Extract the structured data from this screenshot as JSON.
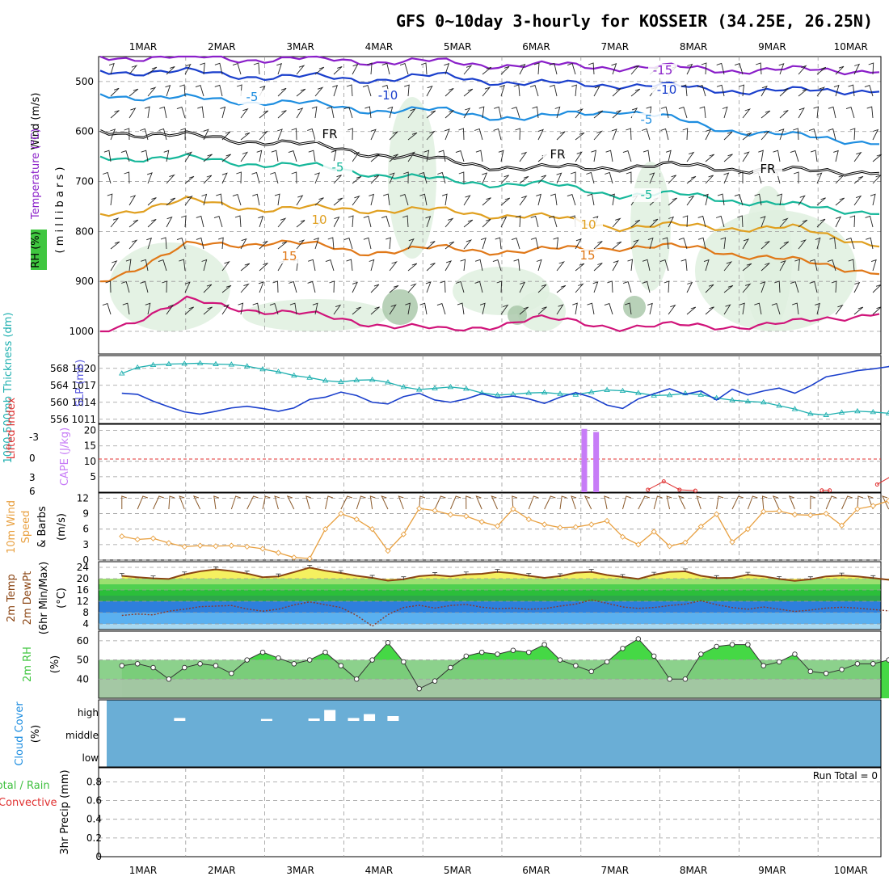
{
  "title": "GFS 0~10day 3-hourly for KOSSEIR (34.25E, 26.25N)",
  "colors": {
    "purple": "#8a1fc9",
    "blue": "#1a3fcc",
    "lightblue": "#1e8ee0",
    "teal": "#16b79a",
    "gold": "#e0a020",
    "orange": "#e07818",
    "magenta": "#d0147a",
    "black": "#000000",
    "rh_green": "#3fc63f",
    "cape_purple": "#c77cf7",
    "li_red": "#e03030",
    "cyan": "#20b0b0",
    "wind_orange": "#e8a040",
    "temp_brown": "#8b4513",
    "temp_yellow": "#f5f060",
    "cloud_bg": "#6aaed6"
  },
  "chart_data": [
    {
      "id": "upper",
      "type": "contour",
      "ylabel_parts": [
        "Wind (m/s)",
        "Temperature (°C)",
        "RH (%)",
        "( m i l l i b a r s )"
      ],
      "yticks": [
        "500",
        "600",
        "700",
        "800",
        "900",
        "1000"
      ],
      "ylim": [
        450,
        1000
      ],
      "x_dates": [
        "1MAR",
        "2MAR",
        "3MAR",
        "4MAR",
        "5MAR",
        "6MAR",
        "7MAR",
        "8MAR",
        "9MAR",
        "10MAR"
      ],
      "contour_labels": [
        "-15",
        "-10",
        "-10",
        "-5",
        "-5",
        "FR",
        "FR",
        "FR",
        "-5",
        "-5",
        "10",
        "10",
        "15",
        "15",
        "10"
      ],
      "isotherms": [
        {
          "label": "-15",
          "color": "purple",
          "p": [
            450,
            452,
            455,
            458,
            462,
            468,
            470,
            475,
            478,
            476
          ]
        },
        {
          "label": "-10",
          "color": "blue",
          "p": [
            478,
            482,
            490,
            495,
            490,
            505,
            505,
            515,
            520,
            515
          ]
        },
        {
          "label": "-5",
          "color": "lightblue",
          "p": [
            525,
            535,
            540,
            555,
            560,
            575,
            555,
            590,
            610,
            620
          ]
        },
        {
          "label": "FR",
          "color": "black",
          "p": [
            598,
            610,
            620,
            640,
            660,
            675,
            670,
            670,
            680,
            678
          ]
        },
        {
          "label": "-5",
          "color": "teal",
          "p": [
            650,
            655,
            665,
            680,
            700,
            705,
            725,
            730,
            750,
            760
          ]
        },
        {
          "label": "10",
          "color": "gold",
          "p": [
            765,
            740,
            755,
            755,
            760,
            770,
            790,
            790,
            795,
            825
          ]
        },
        {
          "label": "15",
          "color": "orange",
          "p": [
            900,
            830,
            820,
            840,
            835,
            840,
            830,
            835,
            860,
            880
          ]
        },
        {
          "label": "",
          "color": "magenta",
          "p": [
            1000,
            940,
            960,
            980,
            1000,
            975,
            990,
            990,
            985,
            960
          ]
        }
      ]
    },
    {
      "id": "thickness",
      "type": "line",
      "ylabel_left": "1000-500mb Thickness (dm)",
      "ylabel_right": "SLP (mb)",
      "yticks_left": [
        "556",
        "560",
        "564",
        "568"
      ],
      "yticks_right": [
        "1011",
        "1014",
        "1017",
        "1020"
      ],
      "ylim_left": [
        555,
        571
      ],
      "series": [
        {
          "color": "cyan",
          "marker": "triangle",
          "values": [
            566.8,
            568.2,
            568.8,
            569.0,
            569.1,
            569.2,
            569.0,
            568.9,
            568.5,
            567.8,
            567.2,
            566.3,
            565.8,
            565.1,
            564.8,
            565.2,
            565.3,
            564.7,
            563.6,
            563.0,
            563.3,
            563.6,
            563.2,
            562.2,
            561.7,
            561.9,
            562.2,
            562.3,
            562.0,
            561.8,
            562.4,
            562.9,
            562.7,
            562.2,
            561.6,
            561.7,
            562.1,
            561.8,
            561.0,
            560.5,
            560.2,
            560.0,
            559.2,
            558.4,
            557.3,
            557.0,
            557.6,
            557.9,
            557.7,
            557.4,
            557.3
          ]
        },
        {
          "color": "blue",
          "marker": "none",
          "values": [
            1015.6,
            1015.4,
            1014.2,
            1013.2,
            1012.3,
            1011.9,
            1012.4,
            1013.0,
            1013.3,
            1012.9,
            1012.4,
            1013.0,
            1014.5,
            1014.9,
            1015.8,
            1015.2,
            1014.0,
            1013.7,
            1015.0,
            1015.6,
            1014.4,
            1014.0,
            1014.6,
            1015.5,
            1014.8,
            1015.1,
            1014.6,
            1013.8,
            1014.9,
            1015.7,
            1014.9,
            1013.5,
            1012.9,
            1014.6,
            1015.5,
            1016.4,
            1015.4,
            1016.0,
            1014.4,
            1016.3,
            1015.3,
            1016.0,
            1016.5,
            1015.6,
            1016.9,
            1018.5,
            1019.0,
            1019.6,
            1019.9,
            1020.3,
            1022.2
          ]
        }
      ]
    },
    {
      "id": "instability",
      "type": "bar",
      "ylabel_left": "Lifted Index",
      "ylabel_right": "CAPE (J/kg)",
      "yticks_left": [
        "-3",
        "0",
        "3",
        "6"
      ],
      "yticks_right": [
        "5",
        "10",
        "15",
        "20"
      ],
      "ylim": [
        0,
        22
      ],
      "bars": [
        {
          "day": 5.6,
          "value": 20.5
        },
        {
          "day": 5.75,
          "value": 19.5
        }
      ],
      "li_segments": [
        {
          "days": [
            6.4,
            6.6,
            6.8,
            7.0
          ],
          "values": [
            0.8,
            3.5,
            0.8,
            0.5
          ]
        },
        {
          "days": [
            8.6,
            8.7
          ],
          "values": [
            0.6,
            0.6
          ]
        },
        {
          "days": [
            9.3,
            9.5,
            9.7,
            9.85,
            10.0,
            10.2,
            10.3
          ],
          "values": [
            2.5,
            5.5,
            7.0,
            4.5,
            2.0,
            4.0,
            3.5
          ]
        }
      ]
    },
    {
      "id": "wind10m",
      "type": "line",
      "ylabel": "10m Wind Speed & Barbs (m/s)",
      "yticks": [
        "0",
        "3",
        "6",
        "9",
        "12"
      ],
      "ylim": [
        0,
        13
      ],
      "series": [
        {
          "color": "wind_orange",
          "marker": "diamond",
          "values": [
            4.6,
            4.0,
            4.2,
            3.3,
            2.6,
            2.8,
            2.7,
            2.8,
            2.6,
            2.2,
            1.4,
            0.5,
            0.3,
            6.0,
            9.0,
            7.9,
            6.0,
            1.8,
            5.0,
            10.0,
            9.6,
            8.8,
            8.5,
            7.4,
            6.6,
            9.9,
            7.9,
            6.9,
            6.3,
            6.4,
            6.9,
            7.6,
            4.5,
            3.0,
            5.5,
            2.7,
            3.4,
            6.5,
            8.9,
            3.5,
            6.0,
            9.4,
            9.5,
            8.8,
            8.7,
            9.0,
            6.7,
            9.9,
            10.5,
            11.5,
            6.0
          ]
        }
      ]
    },
    {
      "id": "temperature",
      "type": "area",
      "ylabel": "2m Temp 2m DewPt (6hr Min/Max) (°C)",
      "yticks": [
        "4",
        "8",
        "12",
        "16",
        "20",
        "24"
      ],
      "ylim": [
        2,
        26
      ],
      "series": [
        {
          "color": "temp_brown",
          "name": "",
          "values": [
            21.0,
            20.5,
            20.1,
            19.9,
            21.5,
            22.6,
            23.3,
            22.7,
            21.8,
            20.5,
            20.8,
            22.3,
            23.9,
            22.8,
            22.0,
            21.0,
            20.3,
            19.3,
            19.8,
            20.9,
            21.3,
            20.8,
            21.5,
            21.7,
            22.4,
            21.9,
            21.0,
            20.3,
            20.9,
            22.1,
            22.4,
            21.3,
            20.6,
            19.9,
            21.4,
            22.4,
            22.6,
            21.0,
            20.2,
            20.3,
            21.4,
            20.8,
            19.9,
            19.2,
            19.8,
            20.8,
            21.1,
            20.8,
            20.2,
            19.6,
            20.0
          ]
        },
        {
          "color": "li_red",
          "name": "",
          "values": [
            7.0,
            7.5,
            7.2,
            8.5,
            9.2,
            10.1,
            10.3,
            10.5,
            9.3,
            8.5,
            9.2,
            10.7,
            11.8,
            10.8,
            9.8,
            7.0,
            3.2,
            7.3,
            9.8,
            10.6,
            9.6,
            10.5,
            10.9,
            9.9,
            9.4,
            9.6,
            9.2,
            9.4,
            10.3,
            11.0,
            12.5,
            11.3,
            10.0,
            9.5,
            9.8,
            10.5,
            11.0,
            12.2,
            10.8,
            9.8,
            9.2,
            10.0,
            9.2,
            8.4,
            8.9,
            9.6,
            9.9,
            9.6,
            9.1,
            8.6,
            9.0
          ]
        }
      ]
    },
    {
      "id": "rh2m",
      "type": "area",
      "ylabel": "2m RH (%)",
      "yticks": [
        "40",
        "50",
        "60"
      ],
      "ylim": [
        30,
        65
      ],
      "series": [
        {
          "color": "rh_green",
          "marker": "circle",
          "values": [
            47,
            48,
            46,
            40,
            46,
            48,
            47,
            43,
            50,
            54,
            51,
            48,
            50,
            54,
            47,
            40,
            50,
            59,
            49,
            35,
            39,
            46,
            52,
            54,
            53,
            55,
            54,
            58,
            50,
            47,
            44,
            49,
            56,
            61,
            52,
            40,
            40,
            53,
            57,
            58,
            58,
            47,
            49,
            53,
            44,
            43,
            45,
            48,
            48,
            50,
            47
          ]
        }
      ]
    },
    {
      "id": "cloud",
      "type": "bar",
      "ylabel": "Cloud Cover (%)",
      "yticks": [
        "low",
        "middle",
        "high"
      ],
      "levels": {
        "high": [
          {
            "day": 0.2,
            "value": 12
          },
          {
            "day": 0.6,
            "value": 0
          },
          {
            "day": 1.3,
            "value": 8
          },
          {
            "day": 1.9,
            "value": 10
          },
          {
            "day": 2.1,
            "value": 45
          },
          {
            "day": 2.4,
            "value": 12
          },
          {
            "day": 2.6,
            "value": 28
          },
          {
            "day": 2.9,
            "value": 20
          }
        ]
      }
    },
    {
      "id": "precip",
      "type": "bar",
      "ylabel": "3hr Precip (mm)",
      "legend": "Total / Rain",
      "legend2": "Convective",
      "annotation": "Run Total = 0",
      "yticks": [
        "0",
        "0.2",
        "0.4",
        "0.6",
        "0.8"
      ],
      "ylim": [
        0,
        1
      ],
      "values": []
    }
  ]
}
